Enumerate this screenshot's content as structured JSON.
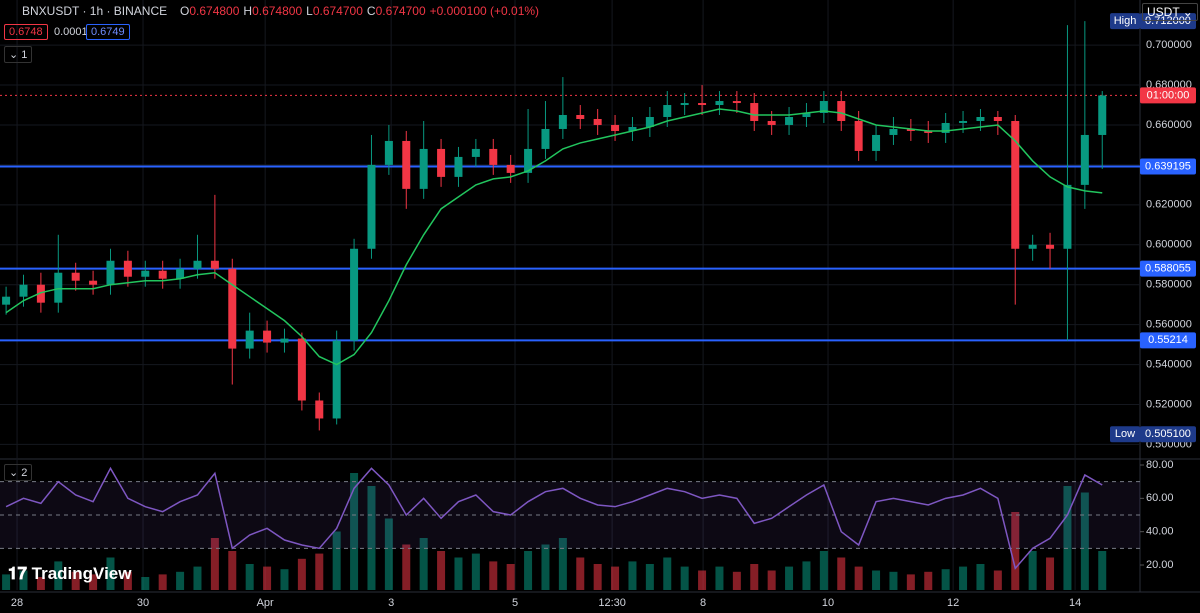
{
  "header": {
    "symbol": "BNXUSDT · 1h · BINANCE",
    "ohlc": [
      {
        "key": "O",
        "value": "0.674800"
      },
      {
        "key": "H",
        "value": "0.674800"
      },
      {
        "key": "L",
        "value": "0.674700"
      },
      {
        "key": "C",
        "value": "0.674700"
      }
    ],
    "change": "+0.000100 (+0.01%)",
    "bid": "0.6748",
    "spread": "0.0001",
    "ask": "0.6749",
    "pane1": "1",
    "pane2": "2",
    "currency": "USDT",
    "logo": "TradingView"
  },
  "chart_data": {
    "type": "candlestick",
    "up_color": "#089981",
    "down_color": "#f23645",
    "open": [
      0.57,
      0.574,
      0.58,
      0.571,
      0.586,
      0.582,
      0.58,
      0.592,
      0.584,
      0.587,
      0.583,
      0.588,
      0.592,
      0.588,
      0.548,
      0.557,
      0.551,
      0.553,
      0.522,
      0.513,
      0.552,
      0.598,
      0.64,
      0.652,
      0.628,
      0.648,
      0.634,
      0.644,
      0.648,
      0.64,
      0.636,
      0.648,
      0.658,
      0.665,
      0.663,
      0.66,
      0.657,
      0.659,
      0.664,
      0.67,
      0.671,
      0.67,
      0.672,
      0.671,
      0.662,
      0.66,
      0.664,
      0.666,
      0.672,
      0.662,
      0.647,
      0.655,
      0.658,
      0.657,
      0.656,
      0.661,
      0.662,
      0.664,
      0.662,
      0.598,
      0.6,
      0.598,
      0.63,
      0.655
    ],
    "high": [
      0.579,
      0.585,
      0.586,
      0.605,
      0.591,
      0.587,
      0.598,
      0.597,
      0.592,
      0.592,
      0.593,
      0.605,
      0.625,
      0.593,
      0.566,
      0.562,
      0.558,
      0.556,
      0.526,
      0.557,
      0.603,
      0.655,
      0.66,
      0.657,
      0.662,
      0.653,
      0.649,
      0.653,
      0.653,
      0.645,
      0.668,
      0.672,
      0.684,
      0.67,
      0.668,
      0.665,
      0.664,
      0.669,
      0.677,
      0.676,
      0.68,
      0.677,
      0.677,
      0.676,
      0.667,
      0.669,
      0.671,
      0.677,
      0.677,
      0.667,
      0.66,
      0.664,
      0.663,
      0.662,
      0.666,
      0.667,
      0.668,
      0.667,
      0.665,
      0.605,
      0.606,
      0.71,
      0.712,
      0.677
    ],
    "low": [
      0.565,
      0.569,
      0.566,
      0.566,
      0.577,
      0.575,
      0.575,
      0.579,
      0.579,
      0.578,
      0.578,
      0.583,
      0.583,
      0.53,
      0.543,
      0.546,
      0.546,
      0.517,
      0.507,
      0.51,
      0.547,
      0.593,
      0.635,
      0.618,
      0.623,
      0.629,
      0.629,
      0.639,
      0.635,
      0.631,
      0.631,
      0.643,
      0.653,
      0.658,
      0.655,
      0.652,
      0.652,
      0.654,
      0.659,
      0.665,
      0.665,
      0.665,
      0.666,
      0.657,
      0.655,
      0.655,
      0.659,
      0.661,
      0.657,
      0.642,
      0.642,
      0.65,
      0.652,
      0.651,
      0.651,
      0.656,
      0.657,
      0.655,
      0.57,
      0.592,
      0.588,
      0.552,
      0.618,
      0.638
    ],
    "close": [
      0.574,
      0.58,
      0.571,
      0.586,
      0.582,
      0.58,
      0.592,
      0.584,
      0.587,
      0.583,
      0.588,
      0.592,
      0.588,
      0.548,
      0.557,
      0.551,
      0.553,
      0.522,
      0.513,
      0.552,
      0.598,
      0.64,
      0.652,
      0.628,
      0.648,
      0.634,
      0.644,
      0.648,
      0.64,
      0.636,
      0.648,
      0.658,
      0.665,
      0.663,
      0.66,
      0.657,
      0.659,
      0.664,
      0.67,
      0.671,
      0.67,
      0.672,
      0.671,
      0.662,
      0.66,
      0.664,
      0.666,
      0.672,
      0.662,
      0.647,
      0.655,
      0.658,
      0.657,
      0.656,
      0.661,
      0.662,
      0.664,
      0.662,
      0.598,
      0.6,
      0.598,
      0.63,
      0.655,
      0.6748
    ],
    "ma": {
      "color": "#22c55e",
      "values": [
        0.566,
        0.572,
        0.576,
        0.578,
        0.578,
        0.578,
        0.58,
        0.581,
        0.582,
        0.582,
        0.583,
        0.585,
        0.586,
        0.58,
        0.574,
        0.568,
        0.562,
        0.554,
        0.544,
        0.54,
        0.545,
        0.556,
        0.572,
        0.59,
        0.605,
        0.618,
        0.624,
        0.63,
        0.633,
        0.634,
        0.637,
        0.642,
        0.648,
        0.651,
        0.653,
        0.655,
        0.657,
        0.659,
        0.662,
        0.664,
        0.666,
        0.668,
        0.667,
        0.665,
        0.665,
        0.665,
        0.666,
        0.667,
        0.666,
        0.663,
        0.66,
        0.659,
        0.658,
        0.657,
        0.657,
        0.658,
        0.659,
        0.66,
        0.652,
        0.642,
        0.634,
        0.629,
        0.627,
        0.626
      ]
    },
    "xlim": [
      -0.35,
      65.17
    ],
    "xticks": [
      {
        "value": 0.63,
        "label": "28"
      },
      {
        "value": 7.87,
        "label": "30"
      },
      {
        "value": 14.89,
        "label": "Apr"
      },
      {
        "value": 22.13,
        "label": "3"
      },
      {
        "value": 29.25,
        "label": "5"
      },
      {
        "value": 34.83,
        "label": "12:30"
      },
      {
        "value": 40.06,
        "label": "8"
      },
      {
        "value": 47.24,
        "label": "10"
      },
      {
        "value": 54.43,
        "label": "12"
      },
      {
        "value": 61.44,
        "label": "14"
      }
    ],
    "ylim": [
      0.4932,
      0.7226
    ],
    "yticks": [
      {
        "value": 0.5,
        "label": "0.500000"
      },
      {
        "value": 0.52,
        "label": "0.520000"
      },
      {
        "value": 0.54,
        "label": "0.540000"
      },
      {
        "value": 0.56,
        "label": "0.560000"
      },
      {
        "value": 0.58,
        "label": "0.580000"
      },
      {
        "value": 0.6,
        "label": "0.600000"
      },
      {
        "value": 0.62,
        "label": "0.620000"
      },
      {
        "value": 0.64,
        "label": "0.640000"
      },
      {
        "value": 0.66,
        "label": "0.660000"
      },
      {
        "value": 0.68,
        "label": "0.680000"
      },
      {
        "value": 0.7,
        "label": "0.700000"
      }
    ],
    "grid": true,
    "levels": {
      "color": "#2962ff",
      "values": [
        0.639195,
        0.588055,
        0.55214
      ]
    },
    "last": {
      "value": 0.6748,
      "label": "01:00:00",
      "color": "#f23645"
    },
    "high_marker": {
      "text": "High",
      "value": 0.712,
      "label": "0.712000"
    },
    "low_marker": {
      "text": "Low",
      "value": 0.5051,
      "label": "0.505100"
    },
    "rsi": {
      "color": "#7e57c2",
      "ylim": [
        5,
        83
      ],
      "bands": [
        70,
        50,
        30
      ],
      "yticks": [
        {
          "value": 20,
          "label": "20.00"
        },
        {
          "value": 40,
          "label": "40.00"
        },
        {
          "value": 60,
          "label": "60.00"
        },
        {
          "value": 80,
          "label": "80.00"
        }
      ],
      "values": [
        55,
        60,
        57,
        70,
        62,
        58,
        78,
        60,
        55,
        52,
        58,
        62,
        75,
        30,
        38,
        42,
        35,
        32,
        30,
        42,
        66,
        78,
        68,
        50,
        60,
        48,
        58,
        62,
        52,
        50,
        58,
        64,
        66,
        60,
        56,
        55,
        58,
        62,
        66,
        64,
        60,
        62,
        60,
        45,
        48,
        55,
        62,
        68,
        40,
        32,
        58,
        60,
        58,
        56,
        60,
        62,
        66,
        60,
        18,
        30,
        36,
        50,
        74,
        68
      ]
    },
    "volume": {
      "ylim": [
        0,
        100
      ],
      "values": [
        12,
        15,
        10,
        22,
        14,
        12,
        25,
        14,
        10,
        12,
        14,
        18,
        40,
        30,
        20,
        18,
        16,
        24,
        28,
        45,
        90,
        80,
        55,
        35,
        40,
        30,
        25,
        28,
        22,
        20,
        30,
        35,
        40,
        25,
        20,
        18,
        22,
        20,
        25,
        18,
        15,
        18,
        14,
        20,
        15,
        18,
        22,
        30,
        25,
        18,
        15,
        14,
        12,
        14,
        16,
        18,
        20,
        15,
        60,
        30,
        25,
        80,
        75,
        30
      ]
    }
  }
}
